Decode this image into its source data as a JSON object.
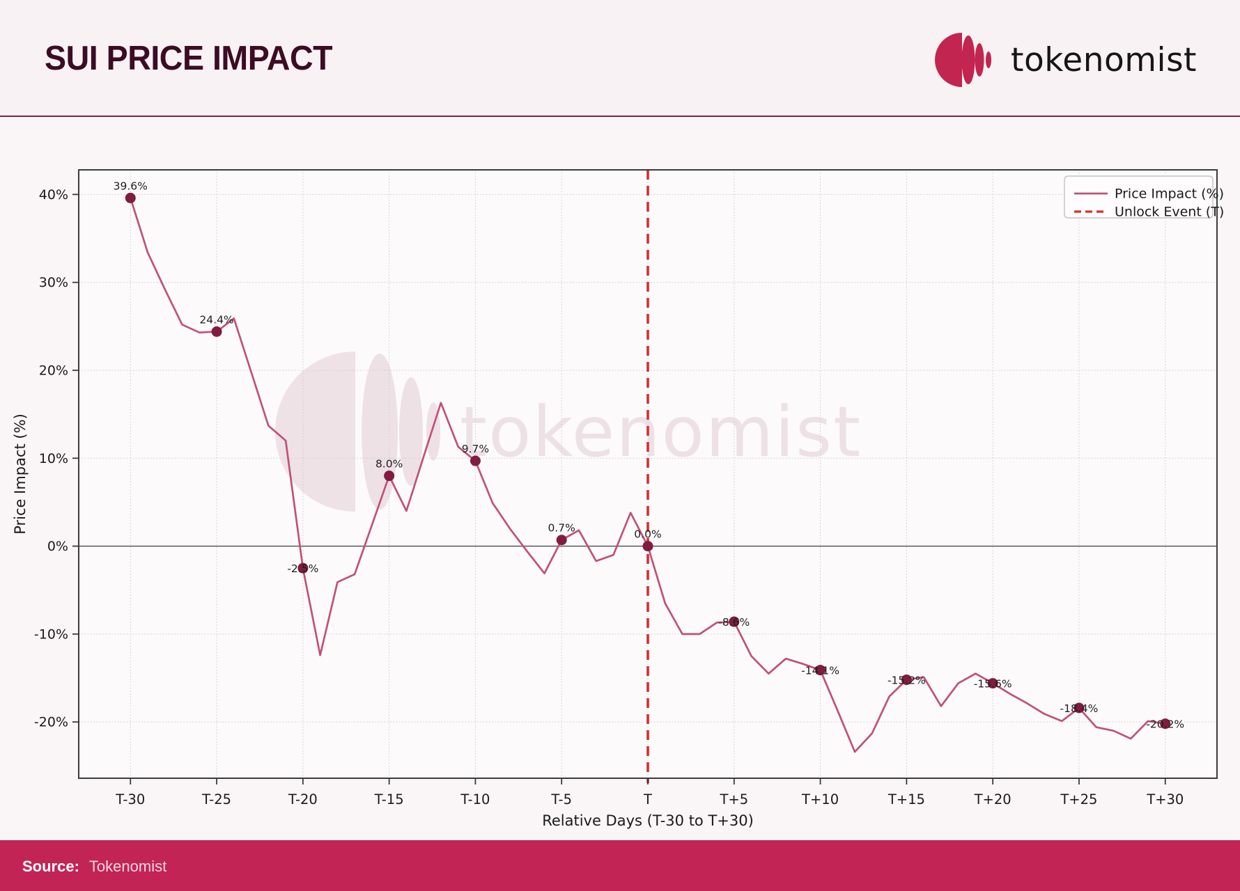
{
  "page": {
    "title": "SUI PRICE IMPACT",
    "brand": {
      "name": "tokenomist"
    },
    "watermark": "tokenomist",
    "source_label": "Source:",
    "source_value": "Tokenomist",
    "colors": {
      "brand": "#c2254f",
      "source_bar": "#c22455",
      "line": "#c2507a",
      "marker": "#801c3f",
      "unlock_line": "#d32f2f",
      "title_text": "#3c0c24"
    }
  },
  "chart_data": {
    "type": "line",
    "title": "SUI PRICE IMPACT",
    "xlabel": "Relative Days (T-30 to T+30)",
    "ylabel": "Price Impact (%)",
    "grid": true,
    "legend_position": "top-right",
    "xlim": [
      -33,
      33
    ],
    "ylim": [
      -26.4,
      42.8
    ],
    "x": [
      -30,
      -29,
      -28,
      -27,
      -26,
      -25,
      -24,
      -23,
      -22,
      -21,
      -20,
      -19,
      -18,
      -17,
      -16,
      -15,
      -14,
      -13,
      -12,
      -11,
      -10,
      -9,
      -8,
      -7,
      -6,
      -5,
      -4,
      -3,
      -2,
      -1,
      0,
      1,
      2,
      3,
      4,
      5,
      6,
      7,
      8,
      9,
      10,
      11,
      12,
      13,
      14,
      15,
      16,
      17,
      18,
      19,
      20,
      21,
      22,
      23,
      24,
      25,
      26,
      27,
      28,
      29,
      30
    ],
    "values": [
      39.6,
      33.4,
      29.2,
      25.2,
      24.3,
      24.4,
      25.9,
      19.8,
      13.7,
      12.0,
      -2.5,
      -12.4,
      -4.1,
      -3.2,
      2.4,
      8.0,
      4.0,
      10.2,
      16.3,
      11.3,
      9.7,
      4.9,
      2.0,
      -0.6,
      -3.1,
      0.7,
      1.8,
      -1.7,
      -1.0,
      3.8,
      0.0,
      -6.5,
      -10.0,
      -10.0,
      -8.7,
      -8.6,
      -12.5,
      -14.5,
      -12.8,
      -13.4,
      -14.1,
      -18.7,
      -23.4,
      -21.3,
      -17.1,
      -15.2,
      -14.9,
      -18.2,
      -15.6,
      -14.5,
      -15.6,
      -16.8,
      -17.9,
      -19.1,
      -19.9,
      -18.4,
      -20.6,
      -21.0,
      -21.9,
      -19.9,
      -20.2
    ],
    "unlock_event_day": 0,
    "x_ticks": [
      {
        "day": -30,
        "label": "T-30"
      },
      {
        "day": -25,
        "label": "T-25"
      },
      {
        "day": -20,
        "label": "T-20"
      },
      {
        "day": -15,
        "label": "T-15"
      },
      {
        "day": -10,
        "label": "T-10"
      },
      {
        "day": -5,
        "label": "T-5"
      },
      {
        "day": 0,
        "label": "T"
      },
      {
        "day": 5,
        "label": "T+5"
      },
      {
        "day": 10,
        "label": "T+10"
      },
      {
        "day": 15,
        "label": "T+15"
      },
      {
        "day": 20,
        "label": "T+20"
      },
      {
        "day": 25,
        "label": "T+25"
      },
      {
        "day": 30,
        "label": "T+30"
      }
    ],
    "y_ticks": [
      {
        "value": 40,
        "label": "40%"
      },
      {
        "value": 30,
        "label": "30%"
      },
      {
        "value": 20,
        "label": "20%"
      },
      {
        "value": 10,
        "label": "10%"
      },
      {
        "value": 0,
        "label": "0%"
      },
      {
        "value": -10,
        "label": "-10%"
      },
      {
        "value": -20,
        "label": "-20%"
      }
    ],
    "point_labels": [
      {
        "day": -30,
        "value": 39.6,
        "label": "39.6%",
        "pos": "above"
      },
      {
        "day": -25,
        "value": 24.4,
        "label": "24.4%",
        "pos": "above"
      },
      {
        "day": -20,
        "value": -2.5,
        "label": "-2.5%",
        "pos": "on"
      },
      {
        "day": -15,
        "value": 8.0,
        "label": "8.0%",
        "pos": "above"
      },
      {
        "day": -10,
        "value": 9.7,
        "label": "9.7%",
        "pos": "above"
      },
      {
        "day": -5,
        "value": 0.7,
        "label": "0.7%",
        "pos": "above"
      },
      {
        "day": 0,
        "value": 0.0,
        "label": "0.0%",
        "pos": "above"
      },
      {
        "day": 5,
        "value": -8.6,
        "label": "-8.6%",
        "pos": "on"
      },
      {
        "day": 10,
        "value": -14.1,
        "label": "-14.1%",
        "pos": "on"
      },
      {
        "day": 15,
        "value": -15.2,
        "label": "-15.2%",
        "pos": "on"
      },
      {
        "day": 20,
        "value": -15.6,
        "label": "-15.6%",
        "pos": "on"
      },
      {
        "day": 25,
        "value": -18.4,
        "label": "-18.4%",
        "pos": "on"
      },
      {
        "day": 30,
        "value": -20.2,
        "label": "-20.2%",
        "pos": "on"
      }
    ],
    "legend": [
      {
        "label": "Price Impact (%)",
        "style": "solid",
        "color": "#c2507a"
      },
      {
        "label": "Unlock Event (T)",
        "style": "dashed",
        "color": "#d32f2f"
      }
    ]
  }
}
